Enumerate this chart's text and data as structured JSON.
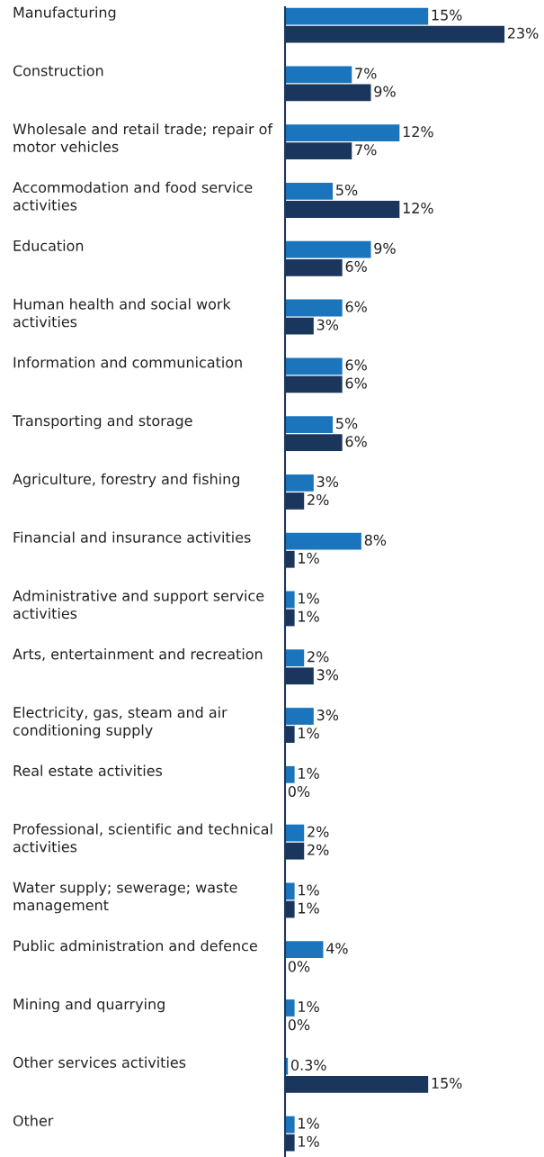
{
  "chart_data": {
    "type": "bar",
    "orientation": "horizontal",
    "categories": [
      "Manufacturing",
      "Construction",
      "Wholesale and retail trade; repair of motor vehicles",
      "Accommodation and food service activities",
      "Education",
      "Human health and social work activities",
      "Information and communication",
      "Transporting and storage",
      "Agriculture, forestry and fishing",
      "Financial and insurance activities",
      "Administrative and support service activities",
      "Arts, entertainment and recreation",
      "Electricity, gas, steam and air conditioning supply",
      "Real estate activities",
      "Professional, scientific and technical activities",
      "Water supply; sewerage; waste management",
      "Public administration and defence",
      "Mining and quarrying",
      "Other services activities",
      "Other"
    ],
    "series": [
      {
        "color": "#1a75bc",
        "values": [
          15,
          7,
          12,
          5,
          9,
          6,
          6,
          5,
          3,
          8,
          1,
          2,
          3,
          1,
          2,
          1,
          4,
          1,
          0.3,
          1
        ],
        "value_labels": [
          "15%",
          "7%",
          "12%",
          "5%",
          "9%",
          "6%",
          "6%",
          "5%",
          "3%",
          "8%",
          "1%",
          "2%",
          "3%",
          "1%",
          "2%",
          "1%",
          "4%",
          "1%",
          "0.3%",
          "1%"
        ]
      },
      {
        "color": "#1b365d",
        "values": [
          23,
          9,
          7,
          12,
          6,
          3,
          6,
          6,
          2,
          1,
          1,
          3,
          1,
          0,
          2,
          1,
          0,
          0,
          15,
          1
        ],
        "value_labels": [
          "23%",
          "9%",
          "7%",
          "12%",
          "6%",
          "3%",
          "6%",
          "6%",
          "2%",
          "1%",
          "1%",
          "3%",
          "1%",
          "0%",
          "2%",
          "1%",
          "0%",
          "0%",
          "15%",
          "1%"
        ]
      }
    ],
    "legend": false
  }
}
